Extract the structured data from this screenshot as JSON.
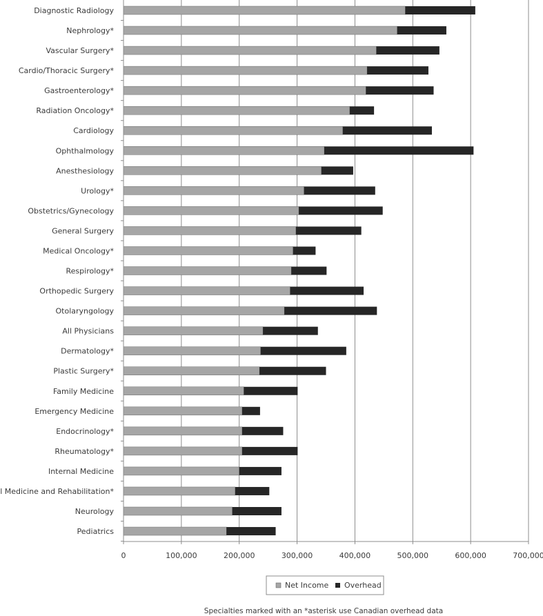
{
  "chart_data": {
    "type": "bar",
    "orientation": "horizontal",
    "stacked": true,
    "categories": [
      "Diagnostic Radiology",
      "Nephrology*",
      "Vascular Surgery*",
      "Cardio/Thoracic Surgery*",
      "Gastroenterology*",
      "Radiation Oncology*",
      "Cardiology",
      "Ophthalmology",
      "Anesthesiology",
      "Urology*",
      "Obstetrics/Gynecology",
      "General Surgery",
      "Medical Oncology*",
      "Respirology*",
      "Orthopedic Surgery",
      "Otolaryngology",
      "All Physicians",
      "Dermatology*",
      "Plastic Surgery*",
      "Family Medicine",
      "Emergency Medicine",
      "Endocrinology*",
      "Rheumatology*",
      "Internal Medicine",
      "Physical Medicine and Rehabilitation*",
      "Neurology",
      "Pediatrics"
    ],
    "series": [
      {
        "name": "Net Income",
        "color": "#a6a6a6",
        "values": [
          487000,
          473000,
          437000,
          421000,
          419000,
          391000,
          379000,
          347000,
          342000,
          312000,
          303000,
          298000,
          293000,
          290000,
          288000,
          278000,
          241000,
          237000,
          235000,
          208000,
          205000,
          205000,
          205000,
          200000,
          193000,
          188000,
          178000
        ]
      },
      {
        "name": "Overhead",
        "color": "#262626",
        "values": [
          121000,
          85000,
          109000,
          106000,
          117000,
          42000,
          154000,
          258000,
          55000,
          123000,
          145000,
          113000,
          39000,
          61000,
          127000,
          160000,
          95000,
          148000,
          115000,
          93000,
          31000,
          71000,
          96000,
          73000,
          59000,
          85000,
          85000
        ]
      }
    ],
    "xlim": [
      0,
      700000
    ],
    "xticks": [
      "0",
      "100,000",
      "200,000",
      "300,000",
      "400,000",
      "500,000",
      "600,000",
      "700,000"
    ],
    "xtick_values": [
      0,
      100000,
      200000,
      300000,
      400000,
      500000,
      600000,
      700000
    ],
    "grid": "vertical",
    "legend_position": "bottom",
    "footnote": "Specialties marked with an *asterisk use Canadian overhead data"
  }
}
